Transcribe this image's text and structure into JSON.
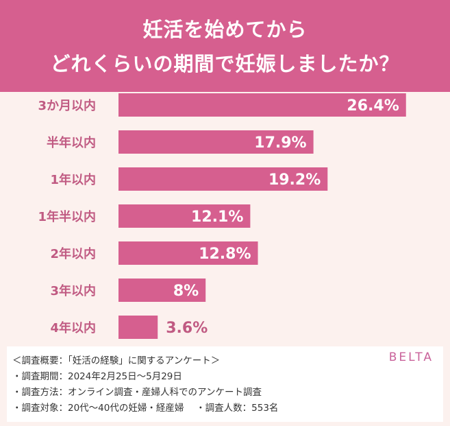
{
  "chart_data": {
    "type": "bar",
    "orientation": "horizontal",
    "title": [
      "妊活を始めてから",
      "どれくらいの期間で妊娠しましたか？"
    ],
    "categories": [
      "3か月以内",
      "半年以内",
      "1年以内",
      "1年半以内",
      "2年以内",
      "3年以内",
      "4年以内"
    ],
    "values": [
      26.4,
      17.9,
      19.2,
      12.1,
      12.8,
      8,
      3.6
    ],
    "value_labels": [
      "26.4%",
      "17.9%",
      "19.2%",
      "12.1%",
      "12.8%",
      "8%",
      "3.6%"
    ],
    "unit": "%",
    "grid": false,
    "colors": {
      "bar": "#d65f8f",
      "label": "#c05a82",
      "header": "#d65f8f",
      "background": "#fcf1ee"
    }
  },
  "footer": {
    "lines": [
      "＜調査概要：「妊活の経験」に関するアンケート＞",
      "・調査期間：2024年2月25日〜5月29日",
      "・調査方法：オンライン調査・産婦人科でのアンケート調査",
      "・調査対象：20代〜40代の妊婦・経産婦　 ・調査人数：553名"
    ],
    "brand": "BELTA"
  }
}
